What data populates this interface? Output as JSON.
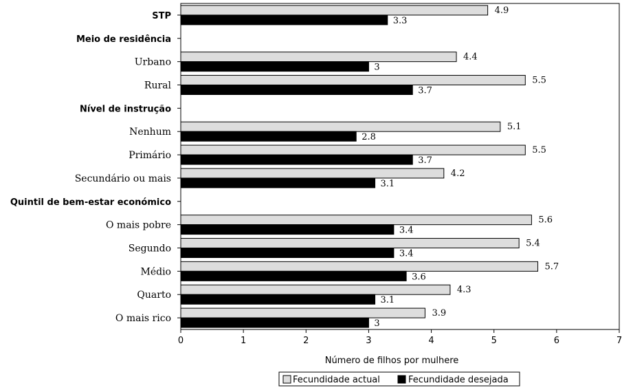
{
  "chart_data": {
    "type": "bar",
    "orientation": "horizontal",
    "xlabel": "Número de filhos por mulhere",
    "xlim": [
      0,
      7
    ],
    "x_ticks": [
      "0",
      "1",
      "2",
      "3",
      "4",
      "5",
      "6",
      "7"
    ],
    "grid": false,
    "legend_position": "bottom",
    "rows": [
      {
        "label": "STP",
        "heading": true,
        "actual": 4.9,
        "desejada": 3.3,
        "actual_label": "4.9",
        "desejada_label": "3.3"
      },
      {
        "label": "Meio de residência",
        "heading": true
      },
      {
        "label": "Urbano",
        "actual": 4.4,
        "desejada": 3.0,
        "actual_label": "4.4",
        "desejada_label": "3"
      },
      {
        "label": "Rural",
        "actual": 5.5,
        "desejada": 3.7,
        "actual_label": "5.5",
        "desejada_label": "3.7"
      },
      {
        "label": "Nível de instrução",
        "heading": true
      },
      {
        "label": "Nenhum",
        "actual": 5.1,
        "desejada": 2.8,
        "actual_label": "5.1",
        "desejada_label": "2.8"
      },
      {
        "label": "Primário",
        "actual": 5.5,
        "desejada": 3.7,
        "actual_label": "5.5",
        "desejada_label": "3.7"
      },
      {
        "label": "Secundário ou mais",
        "actual": 4.2,
        "desejada": 3.1,
        "actual_label": "4.2",
        "desejada_label": "3.1"
      },
      {
        "label": "Quintil de bem-estar económico",
        "heading": true
      },
      {
        "label": "O mais pobre",
        "actual": 5.6,
        "desejada": 3.4,
        "actual_label": "5.6",
        "desejada_label": "3.4"
      },
      {
        "label": "Segundo",
        "actual": 5.4,
        "desejada": 3.4,
        "actual_label": "5.4",
        "desejada_label": "3.4"
      },
      {
        "label": "Médio",
        "actual": 5.7,
        "desejada": 3.6,
        "actual_label": "5.7",
        "desejada_label": "3.6"
      },
      {
        "label": "Quarto",
        "actual": 4.3,
        "desejada": 3.1,
        "actual_label": "4.3",
        "desejada_label": "3.1"
      },
      {
        "label": "O mais rico",
        "actual": 3.9,
        "desejada": 3.0,
        "actual_label": "3.9",
        "desejada_label": "3"
      }
    ],
    "series": [
      {
        "key": "actual",
        "name": "Fecundidade actual",
        "color": "#dddddd"
      },
      {
        "key": "desejada",
        "name": "Fecundidade desejada",
        "color": "#000000"
      }
    ]
  }
}
